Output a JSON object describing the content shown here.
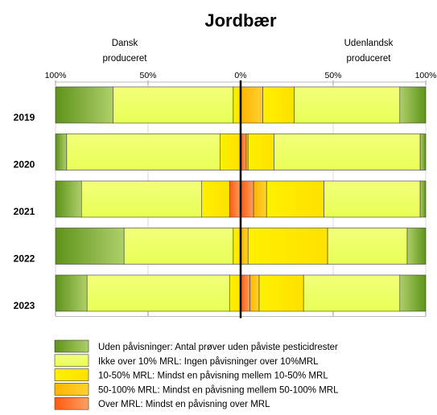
{
  "chart_data": {
    "type": "bar",
    "orientation": "horizontal",
    "stacked": "diverging",
    "title": "Jordbær",
    "left_header": [
      "Dansk",
      "produceret"
    ],
    "right_header": [
      "Udenlandsk",
      "produceret"
    ],
    "x_ticks": [
      "100%",
      "50%",
      "0%",
      "50%",
      "100%"
    ],
    "xlim": [
      -100,
      100
    ],
    "categories": [
      "2019",
      "2020",
      "2021",
      "2022",
      "2023"
    ],
    "series": [
      {
        "name": "Uden påvisninger: Antal prøver uden påviste pesticidrester",
        "color": "#77A32A",
        "dansk": [
          31,
          6,
          14,
          37,
          17
        ],
        "udenlandsk": [
          14,
          3,
          3,
          10,
          14
        ]
      },
      {
        "name": "Ikke over 10% MRL: Ingen påvisninger over 10%MRL",
        "color": "#EEFF66",
        "dansk": [
          65,
          83,
          65,
          59,
          77
        ],
        "udenlandsk": [
          57,
          79,
          52,
          43,
          52
        ]
      },
      {
        "name": "10-50% MRL: Mindst en påvisning mellem 10-50% MRL",
        "color": "#FFEE00",
        "dansk": [
          4,
          11,
          15,
          4,
          6
        ],
        "udenlandsk": [
          17,
          14,
          31,
          43,
          24
        ]
      },
      {
        "name": "50-100% MRL: Mindst en påvisning mellem 50-100% MRL",
        "color": "#FFC400",
        "dansk": [
          0,
          0,
          0,
          0,
          0
        ],
        "udenlandsk": [
          12,
          1,
          7,
          4,
          5
        ]
      },
      {
        "name": "Over MRL:  Mindst en påvisning over MRL",
        "color": "#FF7722",
        "dansk": [
          0,
          0,
          6,
          0,
          0
        ],
        "udenlandsk": [
          0,
          3,
          7,
          0,
          5
        ]
      }
    ],
    "grid": true,
    "legend_position": "bottom"
  }
}
